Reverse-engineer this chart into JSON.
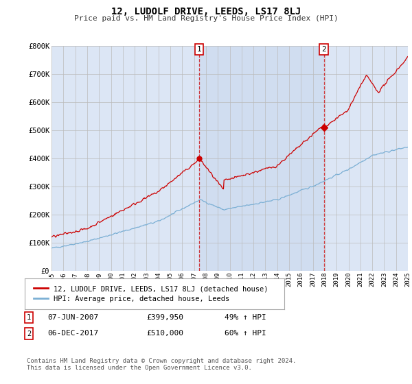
{
  "title": "12, LUDOLF DRIVE, LEEDS, LS17 8LJ",
  "subtitle": "Price paid vs. HM Land Registry's House Price Index (HPI)",
  "background_color": "#ffffff",
  "plot_bg_color": "#dce6f5",
  "plot_bg_highlight": "#c8d8ee",
  "grid_color": "#cccccc",
  "ylim": [
    0,
    800000
  ],
  "yticks": [
    0,
    100000,
    200000,
    300000,
    400000,
    500000,
    600000,
    700000,
    800000
  ],
  "ytick_labels": [
    "£0",
    "£100K",
    "£200K",
    "£300K",
    "£400K",
    "£500K",
    "£600K",
    "£700K",
    "£800K"
  ],
  "year_start": 1995,
  "year_end": 2025,
  "sale1_date": 2007.44,
  "sale1_price": 399950,
  "sale1_label": "1",
  "sale2_date": 2017.92,
  "sale2_price": 510000,
  "sale2_label": "2",
  "line_house_color": "#cc0000",
  "line_hpi_color": "#7bafd4",
  "legend_house_label": "12, LUDOLF DRIVE, LEEDS, LS17 8LJ (detached house)",
  "legend_hpi_label": "HPI: Average price, detached house, Leeds",
  "footer": "Contains HM Land Registry data © Crown copyright and database right 2024.\nThis data is licensed under the Open Government Licence v3.0."
}
